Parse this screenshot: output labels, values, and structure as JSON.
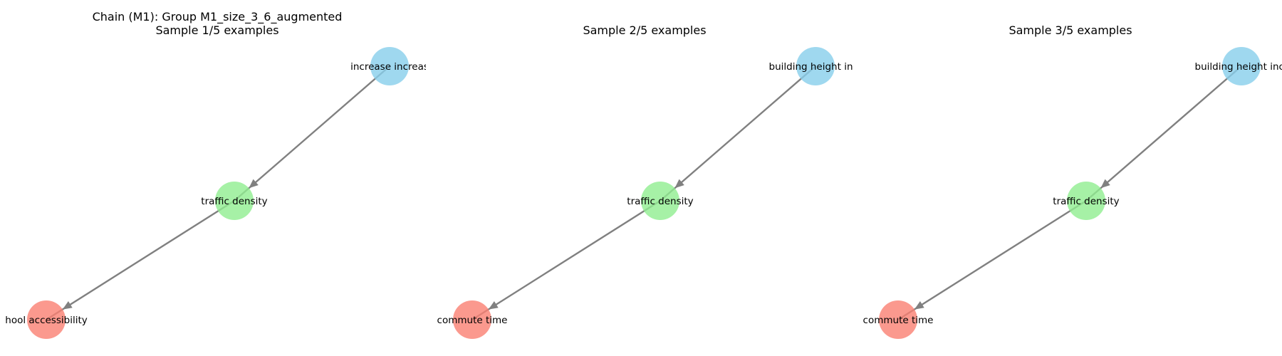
{
  "figure": {
    "suptitle": "Chain (M1): Group M1_size_3_6_augmented",
    "node_colors": {
      "source": "#87CEEB",
      "mediator": "#90EE90",
      "target": "#FA8072"
    },
    "edge_color": "#808080"
  },
  "panels": [
    {
      "title": "Sample 1/5 examples",
      "nodes": [
        {
          "id": "top",
          "role": "source",
          "label": "increase increas"
        },
        {
          "id": "mid",
          "role": "mediator",
          "label": "traffic density"
        },
        {
          "id": "bot",
          "role": "target",
          "label": "hool accessibility"
        }
      ],
      "edges": [
        {
          "from": "top",
          "to": "mid"
        },
        {
          "from": "mid",
          "to": "bot"
        }
      ]
    },
    {
      "title": "Sample 2/5 examples",
      "nodes": [
        {
          "id": "top",
          "role": "source",
          "label": "building height incr"
        },
        {
          "id": "mid",
          "role": "mediator",
          "label": "traffic density"
        },
        {
          "id": "bot",
          "role": "target",
          "label": "commute time"
        }
      ],
      "edges": [
        {
          "from": "top",
          "to": "mid"
        },
        {
          "from": "mid",
          "to": "bot"
        }
      ]
    },
    {
      "title": "Sample 3/5 examples",
      "nodes": [
        {
          "id": "top",
          "role": "source",
          "label": "building height incr"
        },
        {
          "id": "mid",
          "role": "mediator",
          "label": "traffic density"
        },
        {
          "id": "bot",
          "role": "target",
          "label": "commute time"
        }
      ],
      "edges": [
        {
          "from": "top",
          "to": "mid"
        },
        {
          "from": "mid",
          "to": "bot"
        }
      ]
    }
  ]
}
